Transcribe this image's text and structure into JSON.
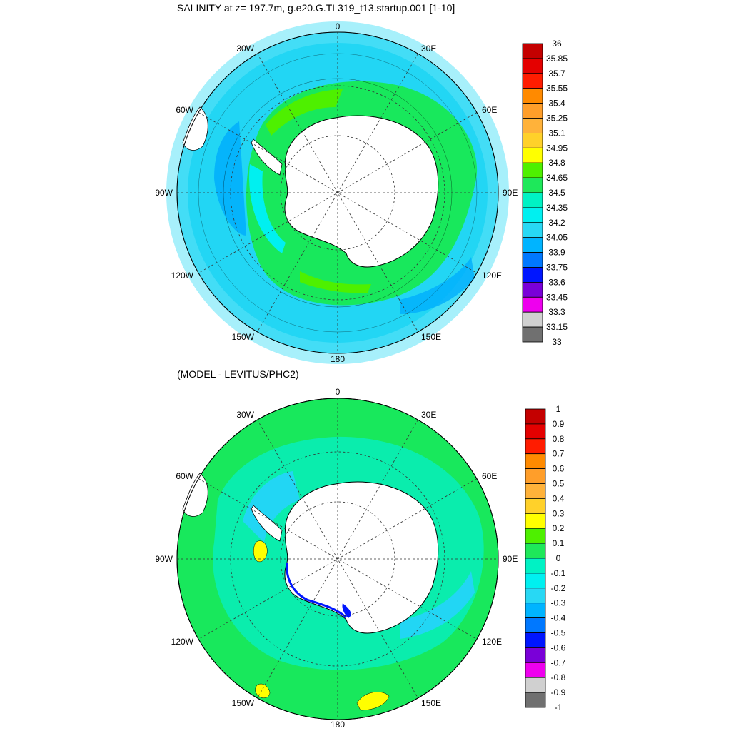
{
  "panels": [
    {
      "id": "salinity",
      "title": "SALINITY at z= 197.7m, g.e20.G.TL319_t13.startup.001 [1-10]",
      "colorbar": {
        "labels": [
          "36",
          "35.85",
          "35.7",
          "35.55",
          "35.4",
          "35.25",
          "35.1",
          "34.95",
          "34.8",
          "34.65",
          "34.5",
          "34.35",
          "34.2",
          "34.05",
          "33.9",
          "33.75",
          "33.6",
          "33.45",
          "33.3",
          "33.15",
          "33"
        ],
        "colors": [
          "#c40000",
          "#e40000",
          "#ff1c00",
          "#ff8a00",
          "#ff9e2a",
          "#ffb23a",
          "#ffd12a",
          "#ffff00",
          "#4ef000",
          "#1ee85a",
          "#00f2c4",
          "#00f0f0",
          "#28d8f4",
          "#00b4ff",
          "#0078ff",
          "#0016ff",
          "#7a00d8",
          "#ee00ee",
          "#d0d0d0",
          "#707070"
        ]
      }
    },
    {
      "id": "difference",
      "title": "(MODEL - LEVITUS/PHC2)",
      "colorbar": {
        "labels": [
          "1",
          "0.9",
          "0.8",
          "0.7",
          "0.6",
          "0.5",
          "0.4",
          "0.3",
          "0.2",
          "0.1",
          "0",
          "-0.1",
          "-0.2",
          "-0.3",
          "-0.4",
          "-0.5",
          "-0.6",
          "-0.7",
          "-0.8",
          "-0.9",
          "-1"
        ],
        "colors": [
          "#c40000",
          "#e40000",
          "#ff1c00",
          "#ff8a00",
          "#ff9e2a",
          "#ffb23a",
          "#ffd12a",
          "#ffff00",
          "#4ef000",
          "#1ee85a",
          "#00f2c4",
          "#00f0f0",
          "#28d8f4",
          "#00b4ff",
          "#0078ff",
          "#0016ff",
          "#7a00d8",
          "#ee00ee",
          "#d0d0d0",
          "#707070"
        ]
      }
    }
  ],
  "map_labels": {
    "top": "0",
    "bottom": "180",
    "left": "90W",
    "right": "90E",
    "upper_left_1": "30W",
    "upper_left_2": "60W",
    "upper_right_1": "30E",
    "upper_right_2": "60E",
    "lower_left_1": "120W",
    "lower_left_2": "150W",
    "lower_right_1": "120E",
    "lower_right_2": "150E"
  }
}
